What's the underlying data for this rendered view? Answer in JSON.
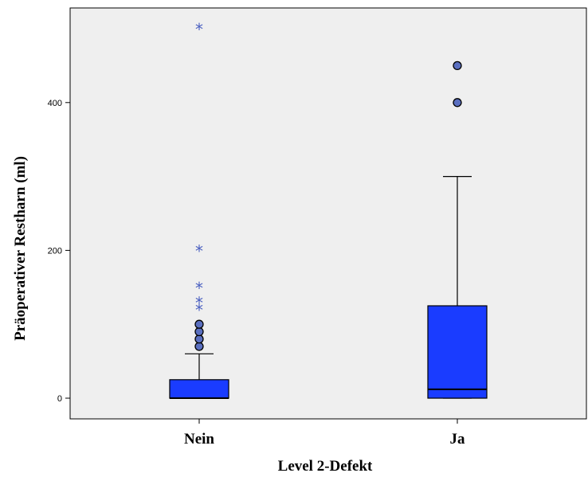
{
  "chart_data": {
    "type": "boxplot",
    "xlabel": "Level 2-Defekt",
    "ylabel": "Präoperativer Restharn (ml)",
    "ylim": [
      -28,
      528
    ],
    "yticks": [
      0,
      200,
      400
    ],
    "ytick_labels": [
      "0",
      "200",
      "400"
    ],
    "grid": false,
    "colors": {
      "plot_bg": "#efefef",
      "box_fill": "#1a3cff",
      "outlier_fill": "#5a6fc0",
      "extreme_color": "#4a5fc0"
    },
    "categories": [
      {
        "label": "Nein",
        "whisker_low": 0,
        "q1": 0,
        "median": 0,
        "q3": 25,
        "whisker_high": 60,
        "outliers": [
          70,
          80,
          90,
          100
        ],
        "extremes": [
          120,
          130,
          150,
          200,
          500
        ]
      },
      {
        "label": "Ja",
        "whisker_low": 0,
        "q1": 0,
        "median": 12,
        "q3": 125,
        "whisker_high": 300,
        "outliers": [
          400,
          450
        ],
        "extremes": []
      }
    ]
  }
}
